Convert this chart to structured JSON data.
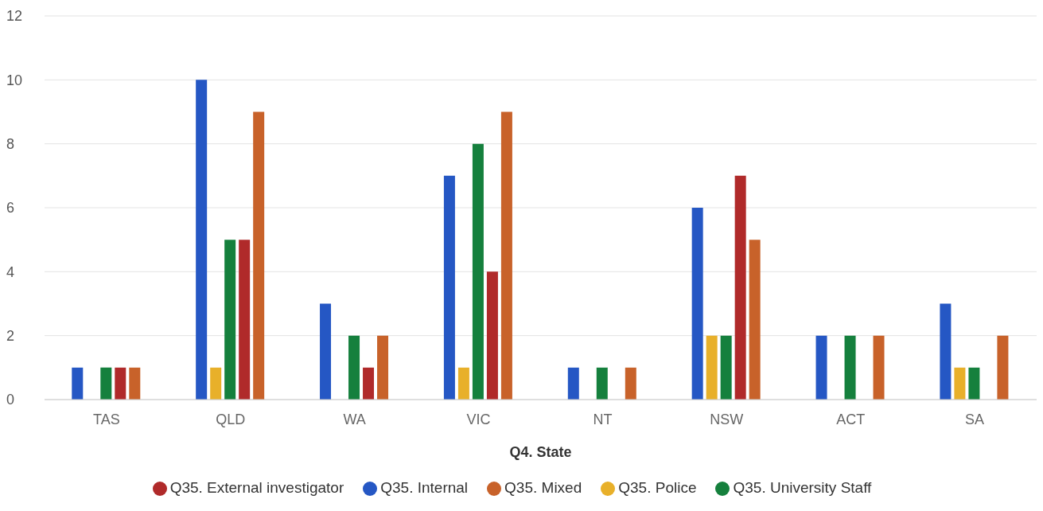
{
  "chart_data": {
    "type": "bar",
    "xlabel": "Q4. State",
    "categories": [
      "TAS",
      "QLD",
      "WA",
      "VIC",
      "NT",
      "NSW",
      "ACT",
      "SA"
    ],
    "series": [
      {
        "name": "Q35. Internal",
        "color": "#2557c4",
        "values": [
          1,
          10,
          3,
          7,
          1,
          6,
          2,
          3
        ]
      },
      {
        "name": "Q35. Police",
        "color": "#e8b02a",
        "values": [
          0,
          1,
          0,
          1,
          0,
          2,
          0,
          1
        ]
      },
      {
        "name": "Q35. University Staff",
        "color": "#15803d",
        "values": [
          1,
          5,
          2,
          8,
          1,
          2,
          2,
          1
        ]
      },
      {
        "name": "Q35. External investigator",
        "color": "#b02a2a",
        "values": [
          1,
          5,
          1,
          4,
          0,
          7,
          0,
          0
        ]
      },
      {
        "name": "Q35. Mixed",
        "color": "#c8622a",
        "values": [
          1,
          9,
          2,
          9,
          1,
          5,
          2,
          2
        ]
      }
    ],
    "ylim": [
      0,
      12
    ],
    "yticks": [
      0,
      2,
      4,
      6,
      8,
      10,
      12
    ],
    "grid": "y",
    "legend": "bottom"
  }
}
